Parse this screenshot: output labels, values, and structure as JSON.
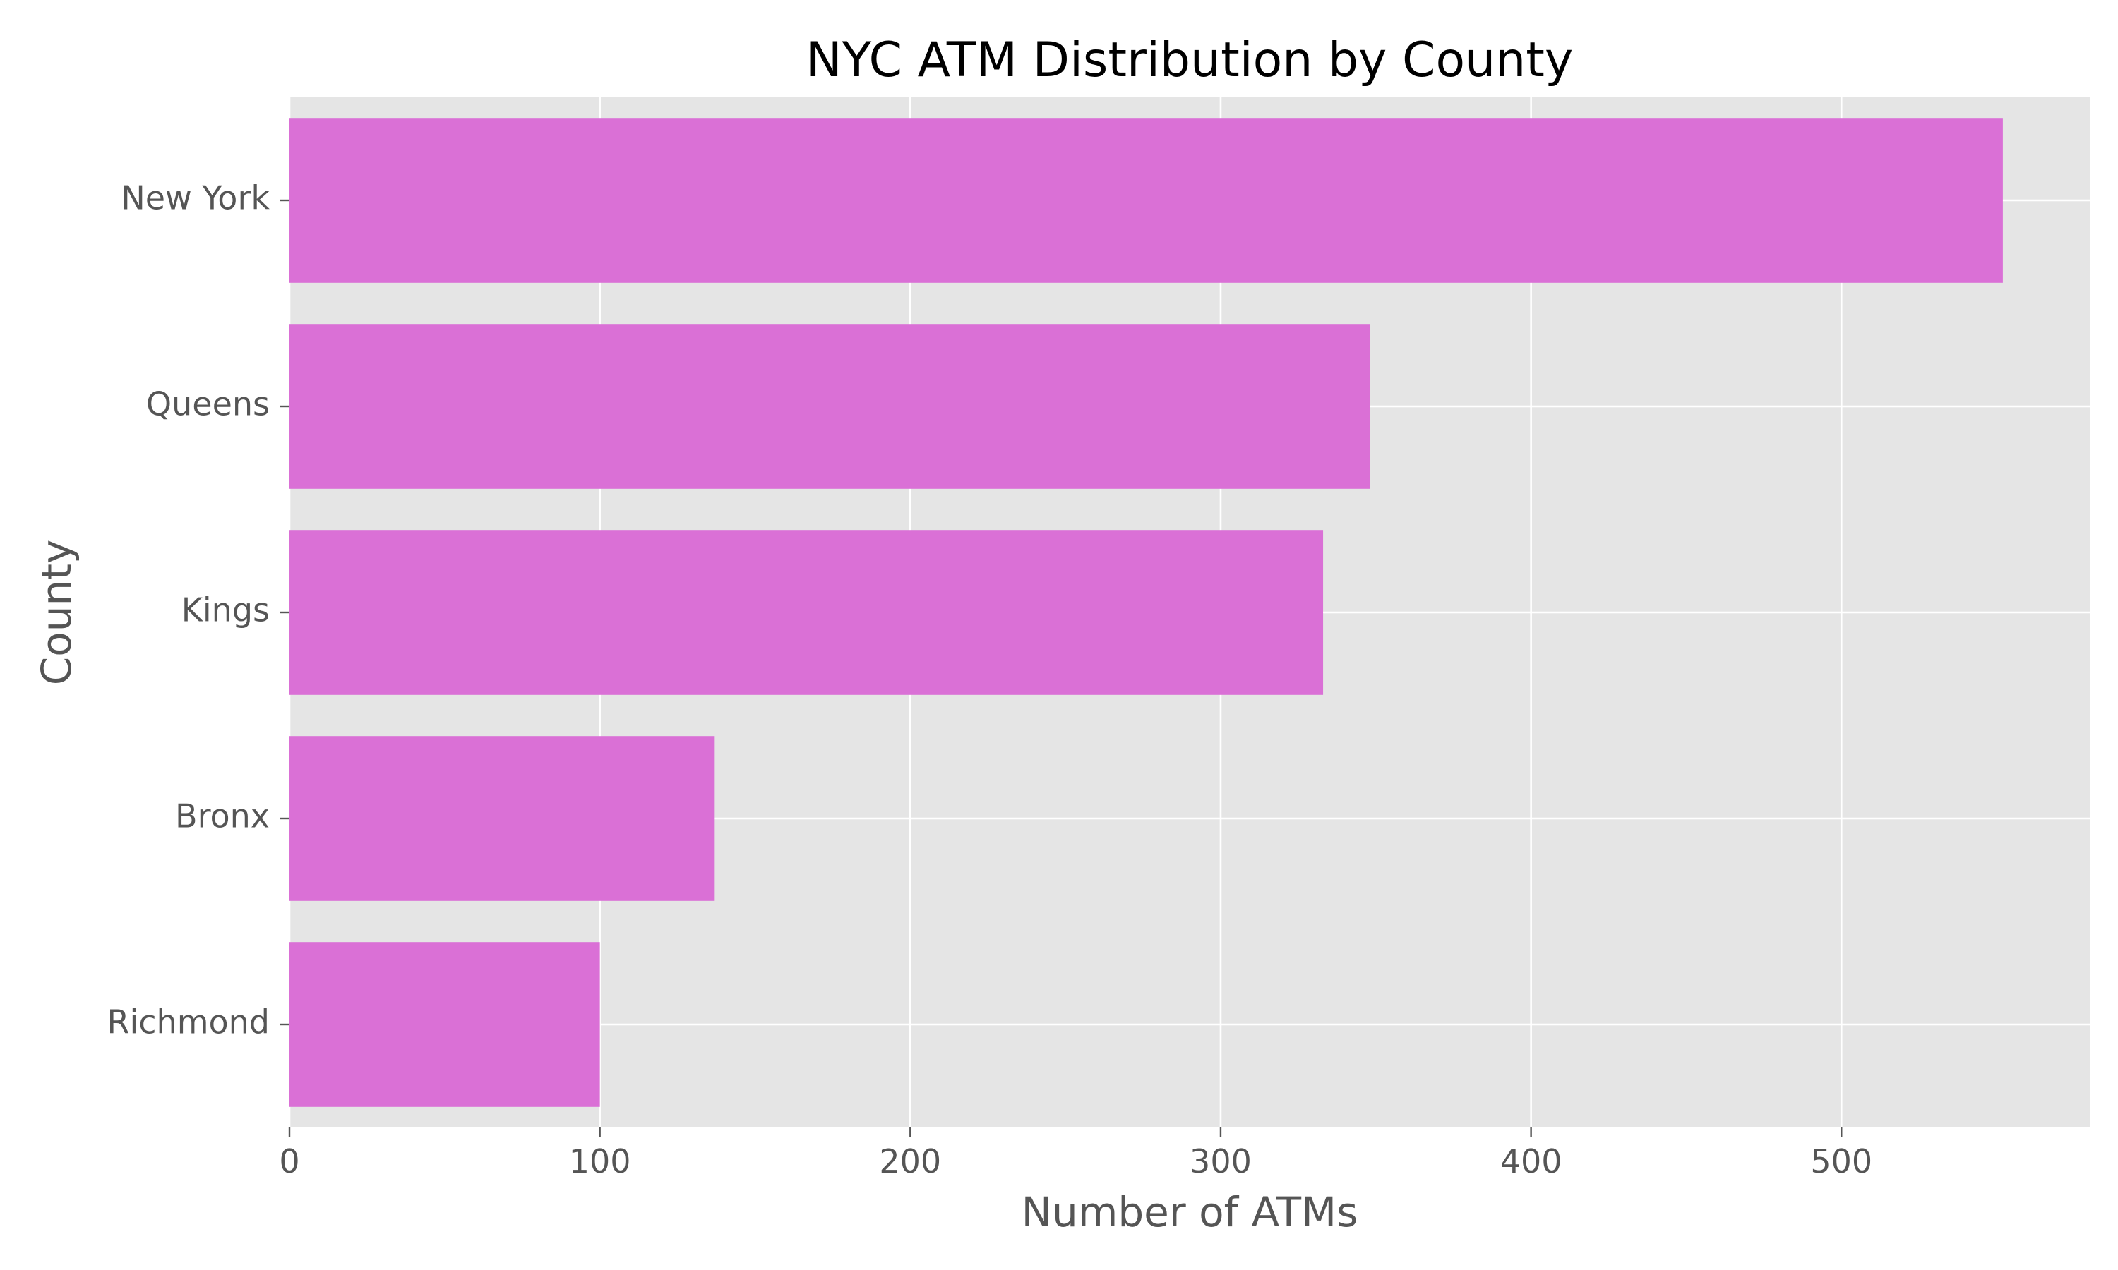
{
  "chart_data": {
    "type": "bar",
    "orientation": "horizontal",
    "title": "NYC ATM Distribution by County",
    "xlabel": "Number of ATMs",
    "ylabel": "County",
    "categories": [
      "New York",
      "Queens",
      "Kings",
      "Bronx",
      "Richmond"
    ],
    "values": [
      552,
      348,
      333,
      137,
      100
    ],
    "xlim": [
      0,
      580
    ],
    "xticks": [
      0,
      100,
      200,
      300,
      400,
      500
    ],
    "grid": true,
    "legend": "none",
    "colors": {
      "bar": "#da70d6",
      "plot_background": "#e5e5e5",
      "grid": "#ffffff",
      "title": "#000000",
      "axis_text": "#555555"
    }
  }
}
